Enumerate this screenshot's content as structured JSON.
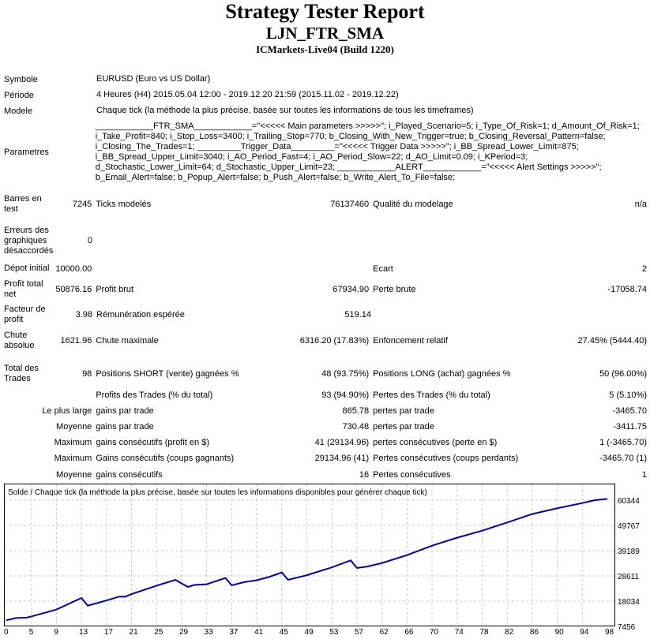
{
  "header": {
    "title": "Strategy Tester Report",
    "ea_name": "LJN_FTR_SMA",
    "server": "ICMarkets-Live04 (Build 1220)"
  },
  "info": {
    "symbol_label": "Symbole",
    "symbol": "EURUSD (Euro vs US Dollar)",
    "period_label": "Période",
    "period": "4 Heures (H4) 2015.05.04 12:00 - 2019.12.20 21:59 (2015.11.02 - 2019.12.22)",
    "model_label": "Modele",
    "model": "Chaque tick (la méthode la plus précise, basée sur toutes les informations de tous les timeframes)",
    "params_label": "Parametres",
    "params": "____________FTR_SMA____________=\"<<<<< Main parameters >>>>>\"; i_Played_Scenario=5; i_Type_Of_Risk=1; d_Amount_Of_Risk=1; i_Take_Profit=840; i_Stop_Loss=3400; i_Trailing_Stop=770; b_Closing_With_New_Trigger=true; b_Closing_Reversal_Pattern=false; i_Closing_The_Trades=1; _________Trigger_Data_________=\"<<<<< Trigger Data >>>>>\"; i_BB_Spread_Lower_Limit=875; i_BB_Spread_Upper_Limit=3040; i_AO_Period_Fast=4; i_AO_Period_Slow=22; d_AO_Limit=0.09; i_KPeriod=3; d_Stochastic_Lower_Limit=64; d_Stochastic_Upper_Limit=23; ____________ALERT____________=\"<<<<< Alert Settings >>>>>\"; b_Email_Alert=false; b_Popup_Alert=false; b_Push_Alert=false; b_Write_Alert_To_File=false;"
  },
  "stats": {
    "bars_label": "Barres en test",
    "bars": "7245",
    "ticks_label": "Ticks modelés",
    "ticks": "76137460",
    "quality_label": "Qualité du modelage",
    "quality": "n/a",
    "errors_label": "Erreurs des graphiques désaccordés",
    "errors": "0",
    "deposit_label": "Dépot initial",
    "deposit": "10000.00",
    "spread_label": "Ecart",
    "spread": "2",
    "net_label": "Profit total net",
    "net": "50876.16",
    "gross_profit_label": "Profit brut",
    "gross_profit": "67934.90",
    "gross_loss_label": "Perte brute",
    "gross_loss": "-17058.74",
    "pf_label": "Facteur de profit",
    "pf": "3.98",
    "payoff_label": "Rémunération espérée",
    "payoff": "519.14",
    "abs_dd_label": "Chute absolue",
    "abs_dd": "1621.96",
    "max_dd_label": "Chute maximale",
    "max_dd": "6316.20 (17.83%)",
    "rel_dd_label": "Enfoncement relatif",
    "rel_dd": "27.45% (5444.40)",
    "total_label": "Total des Trades",
    "total": "98",
    "short_label": "Positions SHORT (vente) gagnées %",
    "short": "48 (93.75%)",
    "long_label": "Positions LONG (achat) gagnées %",
    "long": "50 (96.00%)",
    "win_label": "Profits des Trades (% du total)",
    "win": "93 (94.90%)",
    "loss_label": "Pertes des Trades (% du total)",
    "loss": "5 (5.10%)",
    "largest_label": "Le plus large",
    "largest_win_label": "gains par trade",
    "largest_win": "865.78",
    "largest_loss_label": "pertes par trade",
    "largest_loss": "-3465.70",
    "avg_label": "Moyenne",
    "avg_win_label": "gains par trade",
    "avg_win": "730.48",
    "avg_loss_label": "pertes par trade",
    "avg_loss": "-3411.75",
    "max1_label": "Maximum",
    "max_cw_label": "gains consécutifs (profit en $)",
    "max_cw": "41 (29134.96)",
    "max_cl_label": "pertes consécutives (perte en $)",
    "max_cl": "1 (-3465.70)",
    "max2_label": "Maximum",
    "max_cp_label": "Gains consécutifs (coups gagnants)",
    "max_cp": "29134.96 (41)",
    "max_clp_label": "Pertes consécutives (coups perdants)",
    "max_clp": "-3465.70 (1)",
    "avg2_label": "Moyenne",
    "avg_cw_label": "gains consécutifs",
    "avg_cw": "16",
    "avg_cl_label": "Pertes consécutives",
    "avg_cl": "1"
  },
  "chart_data": {
    "type": "line",
    "title": "Solde / Chaque tick (la méthode la plus précise, basée sur toutes les informations disponibles pour générer chaque tick)",
    "x_ticks": [
      0,
      5,
      9,
      13,
      17,
      21,
      25,
      29,
      33,
      37,
      41,
      45,
      49,
      53,
      57,
      62,
      66,
      70,
      74,
      78,
      82,
      86,
      90,
      94,
      98
    ],
    "y_ticks": [
      7456,
      18034,
      28611,
      39189,
      49767,
      60344
    ],
    "grid": true,
    "line_color": "#0000b4",
    "series": [
      {
        "x": [
          0,
          2,
          4,
          5,
          9,
          13,
          14,
          17,
          19,
          20,
          21,
          25,
          28,
          30,
          31,
          33,
          36,
          37,
          39,
          41,
          43,
          45,
          46,
          49,
          53,
          56,
          57,
          59,
          62,
          66,
          70,
          74,
          78,
          82,
          86,
          90,
          94,
          96,
          98
        ],
        "y": [
          10000,
          11000,
          11100,
          11600,
          14500,
          19360,
          16150,
          18300,
          19900,
          19900,
          21000,
          24500,
          26960,
          23980,
          24800,
          25100,
          27720,
          24640,
          26000,
          26800,
          28200,
          30040,
          26960,
          28900,
          32200,
          35120,
          31920,
          32500,
          33990,
          37300,
          41270,
          44600,
          47560,
          51000,
          54530,
          56950,
          59130,
          60340,
          60876
        ]
      }
    ]
  }
}
